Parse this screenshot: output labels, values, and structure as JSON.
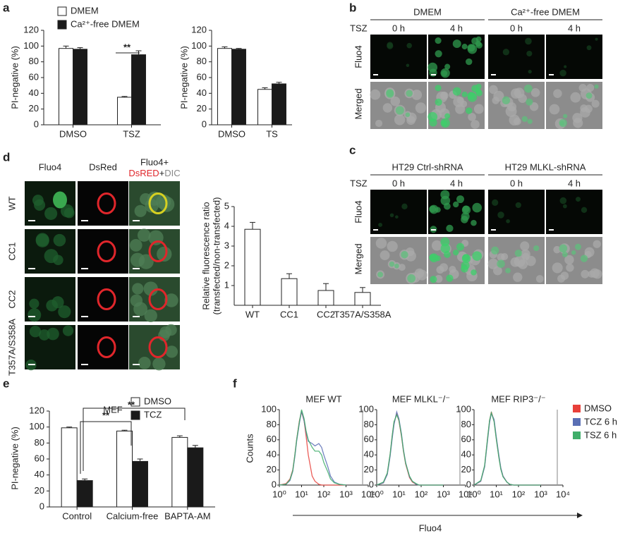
{
  "panel_labels": [
    "a",
    "b",
    "c",
    "d",
    "e",
    "f"
  ],
  "chart_data": [
    {
      "type": "bar",
      "y_label": "PI-negative (%)",
      "categories": [
        "DMSO",
        "TSZ"
      ],
      "series": [
        {
          "name": "DMEM",
          "color": "#ffffff",
          "values": [
            97,
            35
          ],
          "errors": [
            3,
            1
          ]
        },
        {
          "name": "Ca²⁺-free DMEM",
          "color": "#1a1a1a",
          "values": [
            96,
            89
          ],
          "errors": [
            2,
            5
          ]
        }
      ],
      "ylim": [
        0,
        120
      ],
      "yticks": [
        0,
        20,
        40,
        60,
        80,
        100,
        120
      ],
      "annotations": [
        "**"
      ]
    },
    {
      "type": "bar",
      "y_label": "PI-negative (%)",
      "categories": [
        "DMSO",
        "TS"
      ],
      "series": [
        {
          "color": "#ffffff",
          "values": [
            97,
            45
          ],
          "errors": [
            2,
            2
          ]
        },
        {
          "color": "#1a1a1a",
          "values": [
            96,
            52
          ],
          "errors": [
            1,
            2
          ]
        }
      ],
      "ylim": [
        0,
        120
      ],
      "yticks": [
        0,
        20,
        40,
        60,
        80,
        100,
        120
      ]
    },
    {
      "type": "bar",
      "y_label": [
        "Relative fluorescence ratio",
        "(transfected/non-transfected)"
      ],
      "categories": [
        "WT",
        "CC1",
        "CC2",
        "T357A/S358A"
      ],
      "series": [
        {
          "color": "#ffffff",
          "values": [
            3.85,
            1.35,
            0.75,
            0.65
          ],
          "errors": [
            0.35,
            0.25,
            0.35,
            0.25
          ]
        }
      ],
      "ylim": [
        0,
        5
      ],
      "yticks": [
        1,
        2,
        3,
        4,
        5
      ]
    },
    {
      "type": "bar",
      "y_label": "PI-negative (%)",
      "legend_title": "MEF",
      "categories": [
        "Control",
        "Calcium-free",
        "BAPTA-AM"
      ],
      "series": [
        {
          "name": "DMSO",
          "color": "#ffffff",
          "values": [
            99,
            95,
            87
          ],
          "errors": [
            1,
            1,
            2
          ]
        },
        {
          "name": "TCZ",
          "color": "#1a1a1a",
          "values": [
            33,
            57,
            74
          ],
          "errors": [
            2,
            3,
            3
          ]
        }
      ],
      "ylim": [
        0,
        120
      ],
      "yticks": [
        0,
        20,
        40,
        60,
        80,
        100,
        120
      ],
      "annotations": [
        "**",
        "**"
      ]
    },
    {
      "type": "line",
      "title": "MEF WT",
      "y_label": "Counts",
      "log_x": true,
      "x": [
        1,
        2,
        3,
        4,
        5,
        6,
        8,
        10,
        13,
        16,
        20,
        30,
        40,
        60,
        80,
        100,
        150,
        200,
        300,
        500,
        1000
      ],
      "series": [
        {
          "color": "#e8403a",
          "values": [
            0,
            2,
            8,
            20,
            40,
            60,
            85,
            97,
            85,
            65,
            40,
            12,
            5,
            1,
            0,
            0,
            0,
            0,
            0,
            0,
            0
          ]
        },
        {
          "color": "#5a6fb5",
          "values": [
            0,
            1,
            6,
            18,
            38,
            58,
            82,
            98,
            85,
            70,
            58,
            55,
            52,
            55,
            50,
            40,
            25,
            12,
            4,
            1,
            0
          ]
        },
        {
          "color": "#3fae6a",
          "values": [
            0,
            1,
            7,
            19,
            40,
            60,
            84,
            100,
            88,
            72,
            60,
            50,
            45,
            45,
            40,
            30,
            18,
            8,
            3,
            1,
            0
          ]
        }
      ],
      "xlim": [
        1,
        10000
      ],
      "xticks": [
        {
          "value": 1,
          "label": "10⁰"
        },
        {
          "value": 10,
          "label": "10¹"
        },
        {
          "value": 100,
          "label": "10²"
        },
        {
          "value": 1000,
          "label": "10³"
        },
        {
          "value": 10000,
          "label": "10⁴"
        }
      ],
      "ylim": [
        0,
        100
      ],
      "yticks": [
        0,
        20,
        40,
        60,
        80,
        100
      ]
    },
    {
      "type": "line",
      "title": "MEF MLKL⁻/⁻",
      "x_label": "Fluo4",
      "log_x": true,
      "x": [
        1,
        2,
        3,
        4,
        5,
        6,
        8,
        10,
        13,
        16,
        20,
        30,
        40,
        60,
        80,
        100,
        150,
        200,
        300,
        500,
        1000
      ],
      "series": [
        {
          "color": "#e8403a",
          "values": [
            0,
            3,
            15,
            40,
            65,
            82,
            95,
            85,
            65,
            45,
            28,
            10,
            4,
            1,
            0,
            0,
            0,
            0,
            0,
            0,
            0
          ]
        },
        {
          "color": "#5a6fb5",
          "values": [
            0,
            3,
            14,
            38,
            62,
            80,
            97,
            88,
            68,
            47,
            30,
            11,
            5,
            1,
            0,
            0,
            0,
            0,
            0,
            0,
            0
          ]
        },
        {
          "color": "#3fae6a",
          "values": [
            0,
            4,
            16,
            41,
            66,
            84,
            93,
            86,
            66,
            46,
            29,
            12,
            5,
            2,
            0,
            0,
            0,
            0,
            0,
            0,
            0
          ]
        }
      ],
      "xlim": [
        1,
        10000
      ],
      "xticks": [
        {
          "value": 1,
          "label": "10⁰"
        },
        {
          "value": 10,
          "label": "10¹"
        },
        {
          "value": 100,
          "label": "10²"
        },
        {
          "value": 1000,
          "label": "10³"
        },
        {
          "value": 10000,
          "label": "10⁴"
        }
      ],
      "ylim": [
        0,
        100
      ],
      "yticks": [
        0,
        20,
        40,
        60,
        80,
        100
      ]
    },
    {
      "type": "line",
      "title": "MEF RIP3⁻/⁻",
      "log_x": true,
      "x": [
        1,
        2,
        3,
        4,
        5,
        6,
        8,
        10,
        13,
        16,
        20,
        30,
        40,
        60,
        80,
        100,
        150,
        200,
        300,
        500,
        1000
      ],
      "series": [
        {
          "name": "DMSO",
          "color": "#e8403a",
          "values": [
            0,
            5,
            25,
            60,
            85,
            97,
            85,
            62,
            38,
            22,
            12,
            4,
            1,
            0,
            0,
            0,
            0,
            0,
            0,
            0,
            0
          ]
        },
        {
          "name": "TCZ 6 h",
          "color": "#5a6fb5",
          "values": [
            0,
            5,
            24,
            58,
            83,
            95,
            87,
            64,
            40,
            23,
            12,
            4,
            1,
            0,
            0,
            0,
            0,
            0,
            0,
            0,
            0
          ]
        },
        {
          "name": "TSZ 6 h",
          "color": "#3fae6a",
          "values": [
            0,
            6,
            26,
            61,
            86,
            96,
            84,
            61,
            37,
            21,
            11,
            4,
            1,
            0,
            0,
            0,
            0,
            0,
            0,
            0,
            0
          ]
        }
      ],
      "xlim": [
        1,
        10000
      ],
      "xticks": [
        {
          "value": 1,
          "label": "10⁰"
        },
        {
          "value": 10,
          "label": "10¹"
        },
        {
          "value": 100,
          "label": "10²"
        },
        {
          "value": 1000,
          "label": "10³"
        },
        {
          "value": 10000,
          "label": "10⁴"
        }
      ],
      "ylim": [
        0,
        100
      ],
      "yticks": [
        0,
        20,
        40,
        60,
        80,
        100
      ]
    }
  ],
  "micrographs_b": {
    "headers": [
      "DMEM",
      "Ca²⁺-free DMEM"
    ],
    "treatment": "TSZ",
    "times": [
      "0 h",
      "4 h",
      "0 h",
      "4 h"
    ],
    "rows": [
      "Fluo4",
      "Merged"
    ]
  },
  "micrographs_c": {
    "headers": [
      "HT29 Ctrl-shRNA",
      "HT29 MLKL-shRNA"
    ],
    "treatment": "TSZ",
    "times": [
      "0 h",
      "4 h",
      "0 h",
      "4 h"
    ],
    "rows": [
      "Fluo4",
      "Merged"
    ]
  },
  "micrographs_d": {
    "columns": [
      "Fluo4",
      "DsRed"
    ],
    "merge_label": [
      "Fluo4+",
      "DsRED",
      "+",
      "DIC"
    ],
    "rows": [
      "WT",
      "CC1",
      "CC2",
      "T357A/S358A"
    ]
  }
}
